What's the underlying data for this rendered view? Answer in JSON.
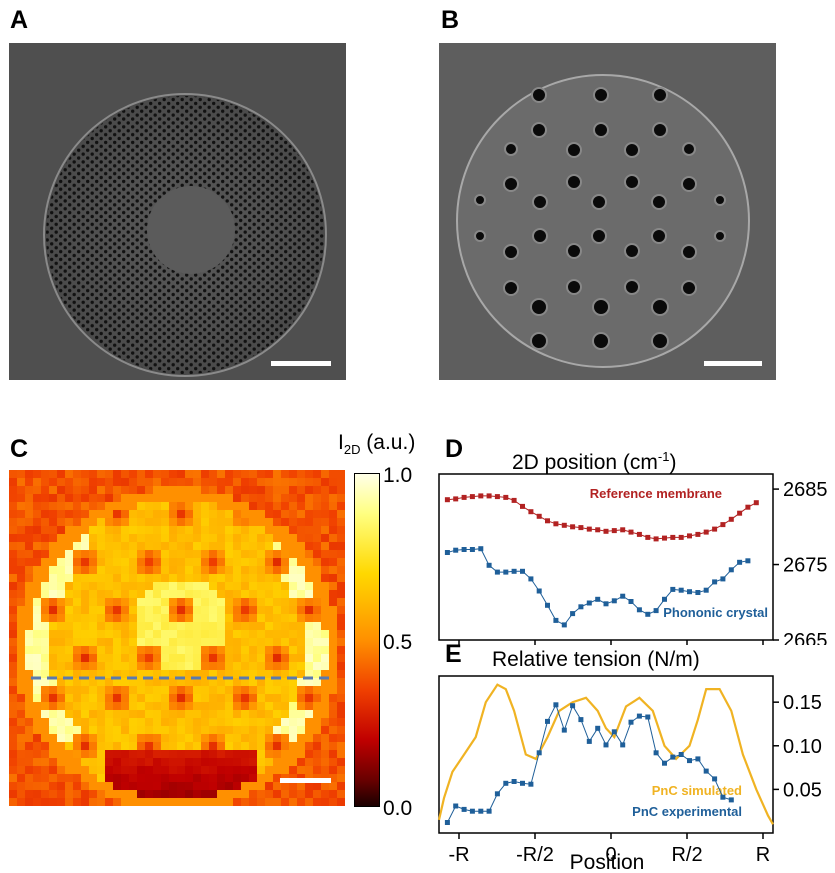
{
  "panels": {
    "a": {
      "letter": "A"
    },
    "b": {
      "letter": "B"
    },
    "c": {
      "letter": "C",
      "colorbar_label_main": "I",
      "colorbar_label_sub": "2D",
      "colorbar_label_unit": " (a.u.)",
      "colorbar_ticks": [
        "1.0",
        "0.5",
        "0.0"
      ]
    },
    "d": {
      "letter": "D",
      "title": "2D position (cm",
      "title_sup": "-1",
      "title_end": ")"
    },
    "e": {
      "letter": "E",
      "title": "Relative tension (N/m)",
      "xlabel": "Position"
    }
  },
  "colors": {
    "sem_bg": "#4b4b4b",
    "reference": "#b22222",
    "phononic": "#1f5f99",
    "simulated": "#f0b323",
    "dashed_line": "#5a7ab0"
  },
  "chart_data": [
    {
      "panel": "D",
      "type": "line",
      "title": "2D position (cm-1)",
      "ylim": [
        2665,
        2687
      ],
      "yticks": [
        "2685",
        "2675",
        "2665"
      ],
      "x_range": [
        -1.0,
        1.0
      ],
      "series": [
        {
          "name": "Reference membrane",
          "x": [
            -0.95,
            -0.9,
            -0.85,
            -0.8,
            -0.75,
            -0.7,
            -0.65,
            -0.6,
            -0.55,
            -0.5,
            -0.45,
            -0.4,
            -0.35,
            -0.3,
            -0.25,
            -0.2,
            -0.15,
            -0.1,
            -0.05,
            0.0,
            0.05,
            0.1,
            0.15,
            0.2,
            0.25,
            0.3,
            0.35,
            0.4,
            0.45,
            0.5,
            0.55,
            0.6,
            0.65,
            0.7,
            0.75,
            0.8,
            0.85,
            0.9
          ],
          "y": [
            2683.6,
            2683.7,
            2683.9,
            2684.0,
            2684.1,
            2684.1,
            2684.0,
            2683.9,
            2683.5,
            2682.7,
            2682.0,
            2681.4,
            2680.8,
            2680.4,
            2680.2,
            2680.0,
            2679.9,
            2679.7,
            2679.6,
            2679.4,
            2679.5,
            2679.6,
            2679.3,
            2679.0,
            2678.6,
            2678.4,
            2678.5,
            2678.6,
            2678.6,
            2678.8,
            2679.0,
            2679.3,
            2679.7,
            2680.3,
            2681.0,
            2681.8,
            2682.6,
            2683.2
          ]
        },
        {
          "name": "Phononic crystal",
          "x": [
            -0.95,
            -0.9,
            -0.85,
            -0.8,
            -0.75,
            -0.7,
            -0.65,
            -0.6,
            -0.55,
            -0.5,
            -0.45,
            -0.4,
            -0.35,
            -0.3,
            -0.25,
            -0.2,
            -0.15,
            -0.1,
            -0.05,
            0.0,
            0.05,
            0.1,
            0.15,
            0.2,
            0.25,
            0.3,
            0.35,
            0.4,
            0.45,
            0.5,
            0.55,
            0.6,
            0.65,
            0.7,
            0.75,
            0.8,
            0.85
          ],
          "y": [
            2676.6,
            2676.9,
            2677.0,
            2677.0,
            2677.1,
            2674.9,
            2674.0,
            2674.0,
            2674.1,
            2674.1,
            2673.1,
            2671.5,
            2669.6,
            2667.6,
            2667.0,
            2668.5,
            2669.4,
            2669.9,
            2670.4,
            2669.8,
            2670.2,
            2670.8,
            2670.1,
            2669.0,
            2668.4,
            2668.9,
            2670.4,
            2671.7,
            2671.6,
            2671.4,
            2671.3,
            2671.6,
            2672.7,
            2673.1,
            2674.3,
            2675.3,
            2675.5
          ]
        }
      ]
    },
    {
      "panel": "E",
      "type": "line",
      "title": "Relative tension (N/m)",
      "xlabel": "Position",
      "ylim": [
        0.0,
        0.18
      ],
      "yticks": [
        "0.15",
        "0.10",
        "0.05"
      ],
      "xticks": [
        "-R",
        "-R/2",
        "0",
        "R/2",
        "R"
      ],
      "x_range": [
        -1.0,
        1.0
      ],
      "series": [
        {
          "name": "PnC simulated",
          "x": [
            -1.0,
            -0.97,
            -0.92,
            -0.85,
            -0.78,
            -0.72,
            -0.65,
            -0.6,
            -0.55,
            -0.48,
            -0.42,
            -0.35,
            -0.28,
            -0.2,
            -0.12,
            -0.05,
            0.0,
            0.05,
            0.12,
            0.2,
            0.28,
            0.35,
            0.42,
            0.5,
            0.55,
            0.6,
            0.68,
            0.75,
            0.82,
            0.9,
            0.97,
            1.0
          ],
          "y": [
            0.015,
            0.04,
            0.07,
            0.09,
            0.11,
            0.15,
            0.17,
            0.165,
            0.14,
            0.09,
            0.085,
            0.11,
            0.14,
            0.15,
            0.155,
            0.14,
            0.12,
            0.11,
            0.145,
            0.155,
            0.14,
            0.1,
            0.085,
            0.1,
            0.13,
            0.165,
            0.165,
            0.14,
            0.09,
            0.05,
            0.02,
            0.01
          ]
        },
        {
          "name": "PnC experimental",
          "x": [
            -0.95,
            -0.9,
            -0.85,
            -0.8,
            -0.75,
            -0.7,
            -0.65,
            -0.6,
            -0.55,
            -0.5,
            -0.45,
            -0.4,
            -0.35,
            -0.3,
            -0.25,
            -0.2,
            -0.15,
            -0.1,
            -0.05,
            0.0,
            0.05,
            0.1,
            0.15,
            0.2,
            0.25,
            0.3,
            0.35,
            0.4,
            0.45,
            0.5,
            0.55,
            0.6,
            0.65,
            0.7,
            0.75,
            0.8,
            0.85
          ],
          "y": [
            0.012,
            0.031,
            0.027,
            0.025,
            0.025,
            0.025,
            0.045,
            0.057,
            0.059,
            0.057,
            0.056,
            0.092,
            0.128,
            0.147,
            0.118,
            0.146,
            0.13,
            0.105,
            0.12,
            0.101,
            0.116,
            0.101,
            0.127,
            0.134,
            0.133,
            0.092,
            0.08,
            0.087,
            0.09,
            0.083,
            0.085,
            0.071,
            0.062,
            0.041,
            0.038,
            0.0,
            0.0
          ]
        }
      ]
    }
  ]
}
